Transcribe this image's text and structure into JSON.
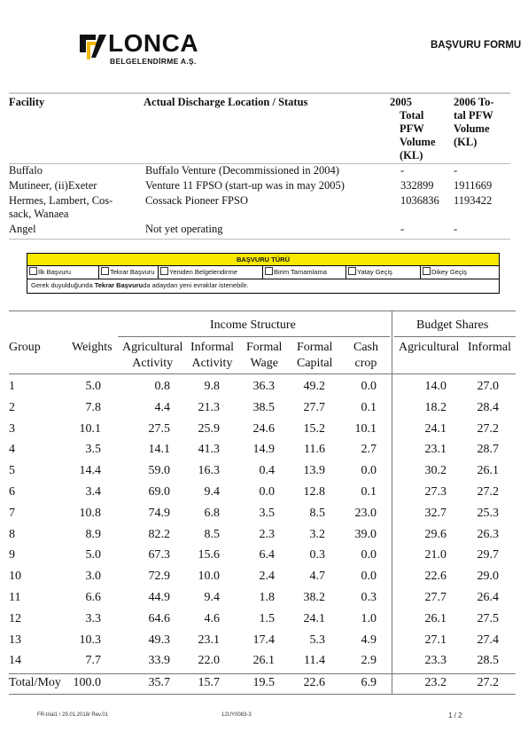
{
  "header": {
    "logo_name": "LONCA",
    "logo_sub": "BELGELENDİRME A.Ş.",
    "form_title": "BAŞVURU FORMU"
  },
  "facility_table": {
    "headers": {
      "facility": "Facility",
      "location": "Actual Discharge Location / Status",
      "y2005": [
        "2005",
        "Total",
        "PFW",
        "Volume",
        "(KL)"
      ],
      "y2006": [
        "2006 To-",
        "tal PFW",
        "Volume",
        "(KL)"
      ]
    },
    "rows": [
      {
        "facility": [
          "Buffalo"
        ],
        "location": "Buffalo Venture (Decommissioned in 2004)",
        "y2005": "-",
        "y2006": "-"
      },
      {
        "facility": [
          "Mutineer, (ii)Exeter"
        ],
        "location": "Venture 11 FPSO (start-up was in may 2005)",
        "y2005": "332899",
        "y2006": "1911669"
      },
      {
        "facility": [
          "Hermes, Lambert, Cos-",
          "sack, Wanaea"
        ],
        "location": "Cossack Pioneer FPSO",
        "y2005": "1036836",
        "y2006": "1193422"
      },
      {
        "facility": [
          "Angel"
        ],
        "location": "Not yet operating",
        "y2005": "-",
        "y2006": "-"
      }
    ]
  },
  "application_box": {
    "title": "BAŞVURU TÜRÜ",
    "options": [
      "İlk Başvuru",
      "Tekrar Başvuru",
      "Yeniden Belgelendirme",
      "Birim Tamamlama",
      "Yatay Geçiş",
      "Dikey Geçiş"
    ],
    "note_pre": "Gerek duyulduğunda ",
    "note_bold": "Tekrar Başvuru",
    "note_post": "da adaydan yeni evraklar istenebilir."
  },
  "income_table": {
    "group_headers": {
      "income": "Income Structure",
      "budget": "Budget Shares"
    },
    "columns": {
      "group": "Group",
      "weights": "Weights",
      "agri": [
        "Agricultural",
        "Activity"
      ],
      "informal": [
        "Informal",
        "Activity"
      ],
      "formal": [
        "Formal",
        "Wage"
      ],
      "capital": [
        "Formal",
        "Capital"
      ],
      "cash": [
        "Cash",
        "crop"
      ],
      "b_agri": "Agricultural",
      "b_inf": "Informal"
    },
    "rows": [
      [
        "1",
        "5.0",
        "0.8",
        "9.8",
        "36.3",
        "49.2",
        "0.0",
        "14.0",
        "27.0"
      ],
      [
        "2",
        "7.8",
        "4.4",
        "21.3",
        "38.5",
        "27.7",
        "0.1",
        "18.2",
        "28.4"
      ],
      [
        "3",
        "10.1",
        "27.5",
        "25.9",
        "24.6",
        "15.2",
        "10.1",
        "24.1",
        "27.2"
      ],
      [
        "4",
        "3.5",
        "14.1",
        "41.3",
        "14.9",
        "11.6",
        "2.7",
        "23.1",
        "28.7"
      ],
      [
        "5",
        "14.4",
        "59.0",
        "16.3",
        "0.4",
        "13.9",
        "0.0",
        "30.2",
        "26.1"
      ],
      [
        "6",
        "3.4",
        "69.0",
        "9.4",
        "0.0",
        "12.8",
        "0.1",
        "27.3",
        "27.2"
      ],
      [
        "7",
        "10.8",
        "74.9",
        "6.8",
        "3.5",
        "8.5",
        "23.0",
        "32.7",
        "25.3"
      ],
      [
        "8",
        "8.9",
        "82.2",
        "8.5",
        "2.3",
        "3.2",
        "39.0",
        "29.6",
        "26.3"
      ],
      [
        "9",
        "5.0",
        "67.3",
        "15.6",
        "6.4",
        "0.3",
        "0.0",
        "21.0",
        "29.7"
      ],
      [
        "10",
        "3.0",
        "72.9",
        "10.0",
        "2.4",
        "4.7",
        "0.0",
        "22.6",
        "29.0"
      ],
      [
        "11",
        "6.6",
        "44.9",
        "9.4",
        "1.8",
        "38.2",
        "0.3",
        "27.7",
        "26.4"
      ],
      [
        "12",
        "3.3",
        "64.6",
        "4.6",
        "1.5",
        "24.1",
        "1.0",
        "26.1",
        "27.5"
      ],
      [
        "13",
        "10.3",
        "49.3",
        "23.1",
        "17.4",
        "5.3",
        "4.9",
        "27.1",
        "27.4"
      ],
      [
        "14",
        "7.7",
        "33.9",
        "22.0",
        "26.1",
        "11.4",
        "2.9",
        "23.3",
        "28.5"
      ]
    ],
    "total": [
      "Total/Moy",
      "100.0",
      "35.7",
      "15.7",
      "19.5",
      "22.6",
      "6.9",
      "23.2",
      "27.2"
    ]
  },
  "footer": {
    "left": "FR-trial1 / 29.01.2018/ Rev.01",
    "center": "12UY0083-3",
    "page": "1 / 2"
  },
  "colors": {
    "box_header": "#f6e800",
    "logo_accent": "#f2b800"
  }
}
